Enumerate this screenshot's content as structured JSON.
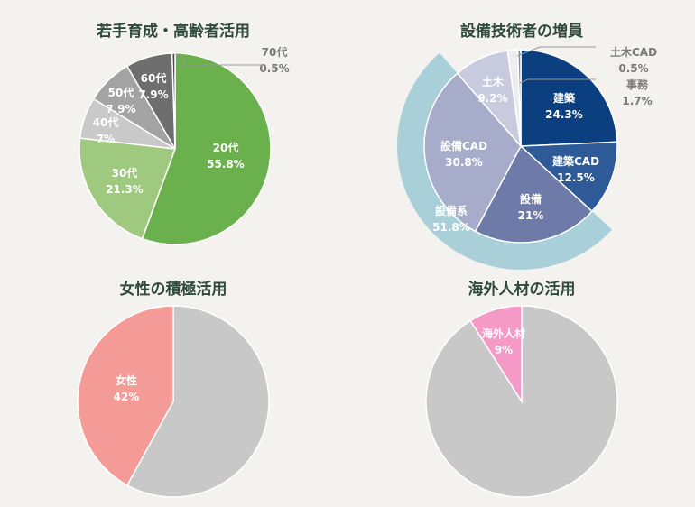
{
  "chart_data": [
    {
      "type": "pie",
      "title": "若手育成・高齢者活用",
      "slices": [
        {
          "name": "20代",
          "value": 55.8,
          "label": "55.8%",
          "color": "#6ab04c",
          "text_color": "#ffffff",
          "inside": true
        },
        {
          "name": "30代",
          "value": 21.3,
          "label": "21.3%",
          "color": "#9fc97e",
          "text_color": "#ffffff",
          "inside": true
        },
        {
          "name": "40代",
          "value": 7,
          "label": "7%",
          "color": "#c9c9c9",
          "text_color": "#ffffff",
          "inside": true
        },
        {
          "name": "50代",
          "value": 7.9,
          "label": "7.9%",
          "color": "#a3a3a3",
          "text_color": "#ffffff",
          "inside": true
        },
        {
          "name": "60代",
          "value": 7.9,
          "label": "7.9%",
          "color": "#6e6e6e",
          "text_color": "#ffffff",
          "inside": true
        },
        {
          "name": "70代",
          "value": 0.5,
          "label": "0.5%",
          "color": "#4a4a4a",
          "text_color": "#7a7a7a",
          "inside": false
        }
      ]
    },
    {
      "type": "pie",
      "title": "設備技術者の増員",
      "slices": [
        {
          "name": "建築",
          "value": 24.3,
          "label": "24.3%",
          "color": "#0c3f80",
          "text_color": "#ffffff",
          "inside": true
        },
        {
          "name": "建築CAD",
          "value": 12.5,
          "label": "12.5%",
          "color": "#2e5b98",
          "text_color": "#ffffff",
          "inside": true
        },
        {
          "name": "設備",
          "value": 21,
          "label": "21%",
          "color": "#6e7aa8",
          "text_color": "#ffffff",
          "inside": true
        },
        {
          "name": "設備CAD",
          "value": 30.8,
          "label": "30.8%",
          "color": "#a6acc9",
          "text_color": "#ffffff",
          "inside": true
        },
        {
          "name": "土木",
          "value": 9.2,
          "label": "9.2%",
          "color": "#c8cbde",
          "text_color": "#ffffff",
          "inside": true
        },
        {
          "name": "事務",
          "value": 1.7,
          "label": "1.7%",
          "color": "#ececf1",
          "text_color": "#7a7a7a",
          "inside": false
        },
        {
          "name": "土木CAD",
          "value": 0.5,
          "label": "0.5%",
          "color": "#8c8c8c",
          "text_color": "#7a7a7a",
          "inside": false
        }
      ],
      "group_arc": {
        "name": "設備系",
        "value": 51.8,
        "label": "51.8%",
        "color": "#a9cfd8",
        "text_color": "#ffffff"
      }
    },
    {
      "type": "pie",
      "title": "女性の積極活用",
      "slices": [
        {
          "name": "",
          "value": 58,
          "label": "",
          "color": "#c8c8c8",
          "text_color": "#ffffff",
          "inside": true
        },
        {
          "name": "女性",
          "value": 42,
          "label": "42%",
          "color": "#f49b97",
          "text_color": "#ffffff",
          "inside": true
        }
      ]
    },
    {
      "type": "pie",
      "title": "海外人材の活用",
      "slices": [
        {
          "name": "",
          "value": 91,
          "label": "",
          "color": "#c8c8c8",
          "text_color": "#ffffff",
          "inside": true
        },
        {
          "name": "海外人材",
          "value": 9,
          "label": "9%",
          "color": "#f59ac7",
          "text_color": "#ffffff",
          "inside": true
        }
      ]
    }
  ]
}
